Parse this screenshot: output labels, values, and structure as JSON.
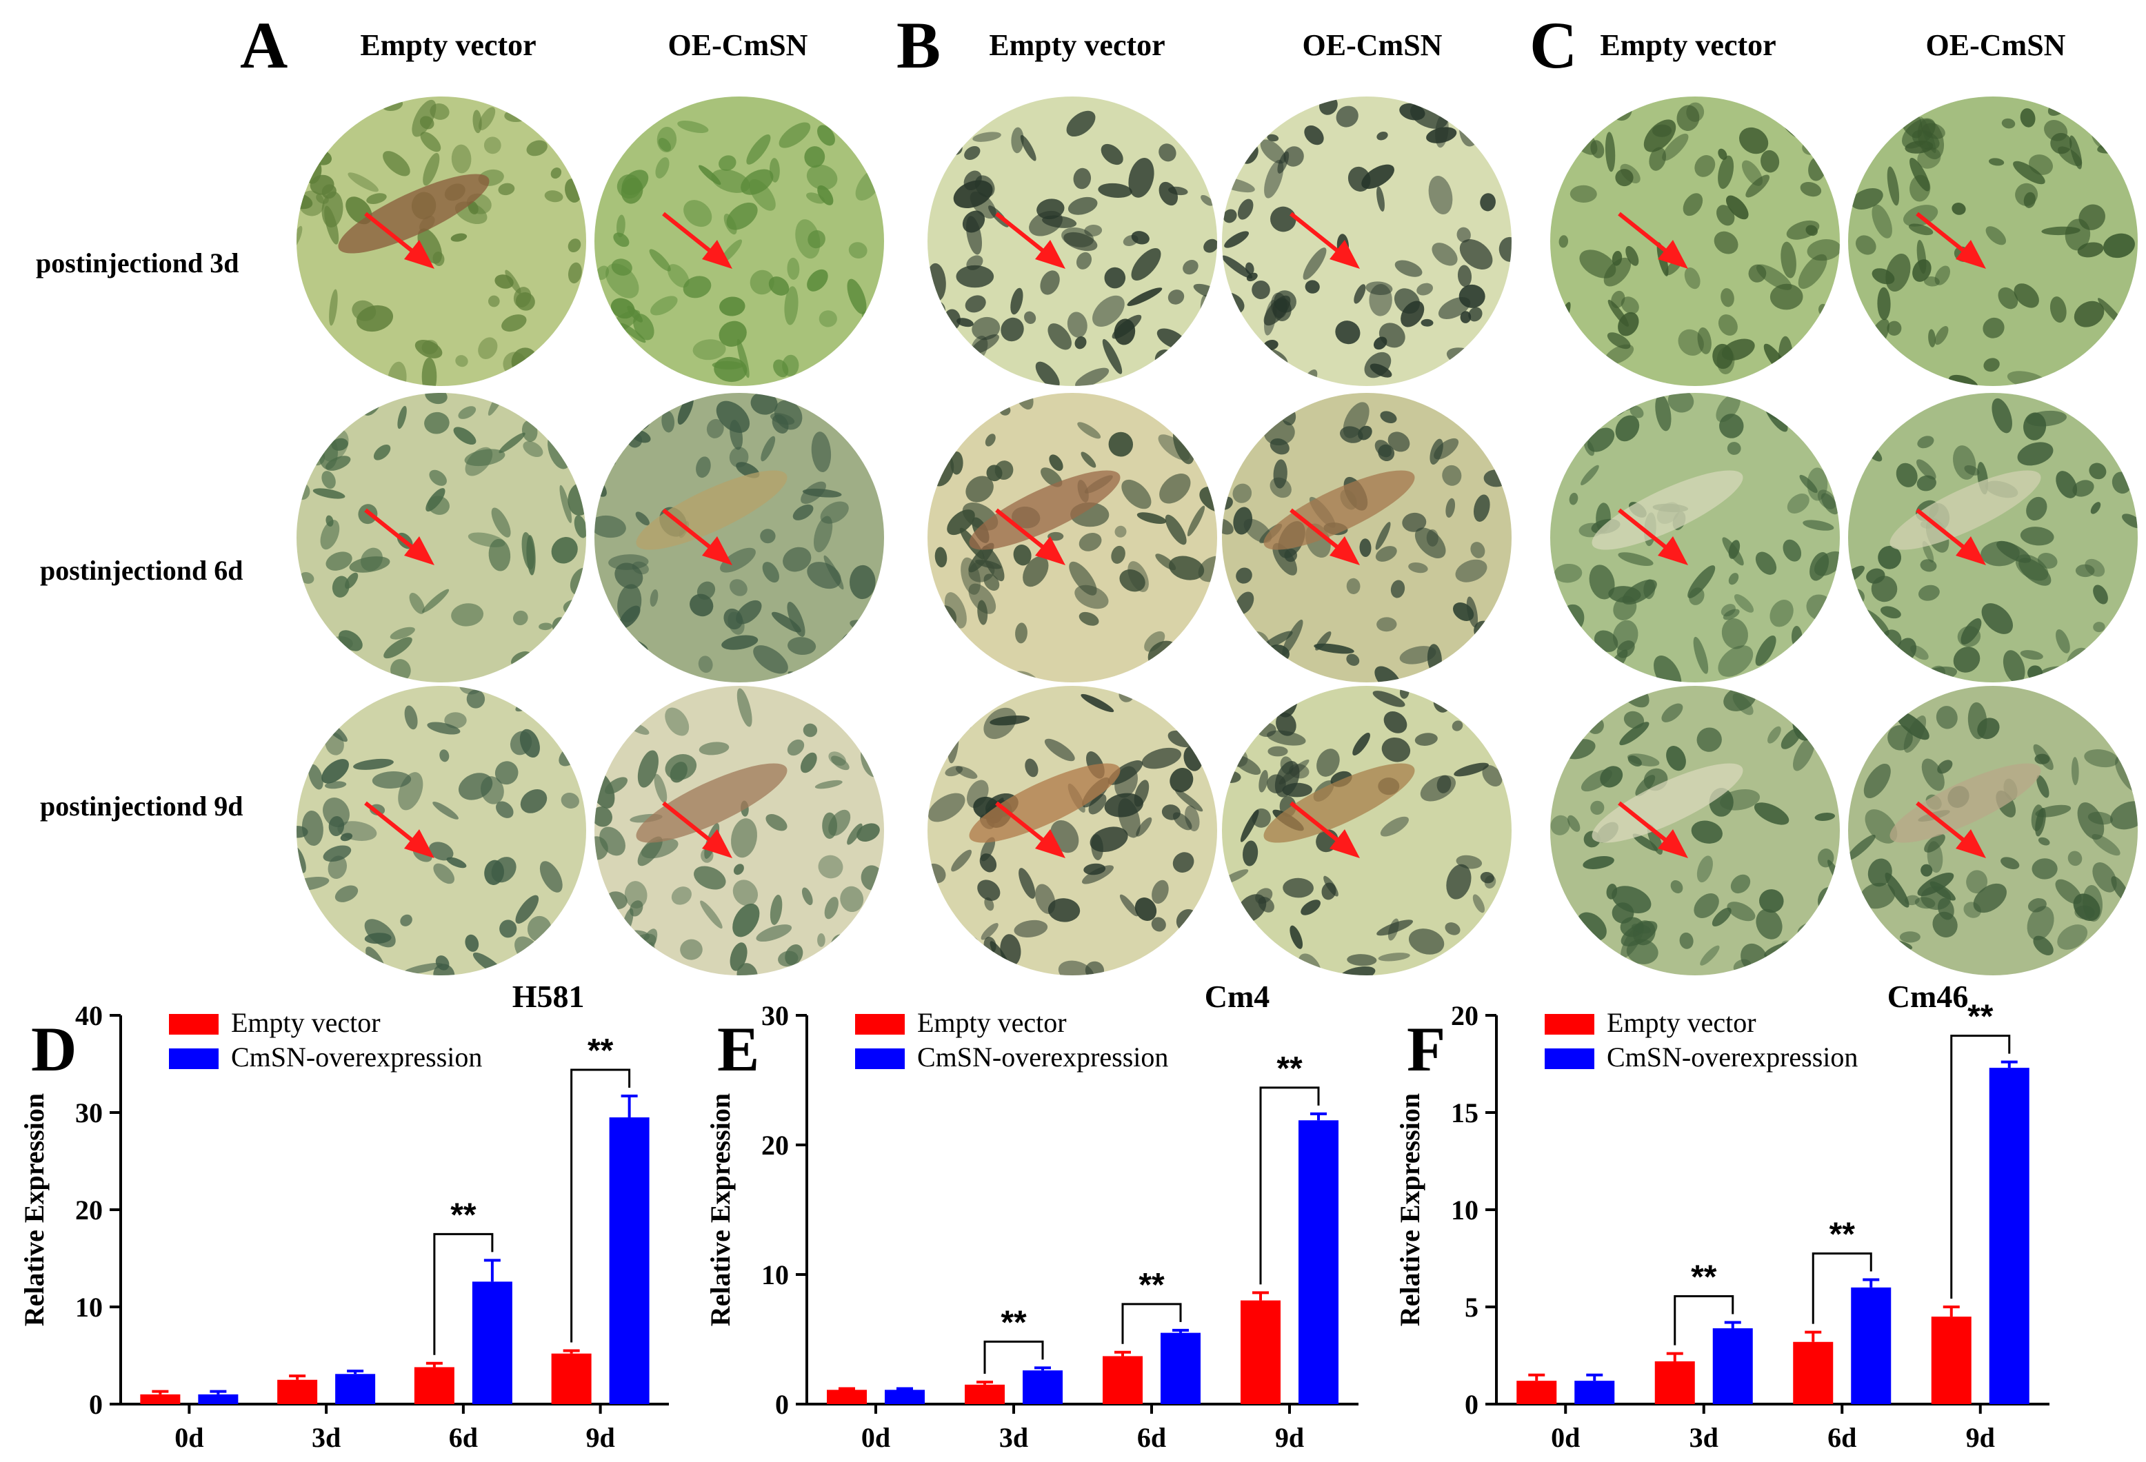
{
  "top_panels": [
    {
      "letter": "A",
      "columns": [
        "Empty vector",
        "OE-CmSN"
      ],
      "photos": [
        {
          "row": 0,
          "col": 0,
          "base": "#b9c987",
          "spots": "#5f7f3a",
          "lesion": "#8a5a3a"
        },
        {
          "row": 0,
          "col": 1,
          "base": "#a8c27a",
          "spots": "#5a8a3a",
          "lesion": null
        },
        {
          "row": 1,
          "col": 0,
          "base": "#c6cda0",
          "spots": "#4a6a48",
          "lesion": null
        },
        {
          "row": 1,
          "col": 1,
          "base": "#9fae86",
          "spots": "#3e5a44",
          "lesion": "#b6a26a"
        },
        {
          "row": 2,
          "col": 0,
          "base": "#cfd4a8",
          "spots": "#3f5c46",
          "lesion": null
        },
        {
          "row": 2,
          "col": 1,
          "base": "#d8d6b6",
          "spots": "#4d6a4c",
          "lesion": "#a07a5a"
        }
      ]
    },
    {
      "letter": "B",
      "columns": [
        "Empty vector",
        "OE-CmSN"
      ],
      "photos": [
        {
          "row": 0,
          "col": 0,
          "base": "#d5dcaf",
          "spots": "#27362a",
          "lesion": null
        },
        {
          "row": 0,
          "col": 1,
          "base": "#d7ddb2",
          "spots": "#26352a",
          "lesion": null
        },
        {
          "row": 1,
          "col": 0,
          "base": "#d9d3a8",
          "spots": "#3a4c36",
          "lesion": "#9a6a48"
        },
        {
          "row": 1,
          "col": 1,
          "base": "#c9c89a",
          "spots": "#2f4233",
          "lesion": "#a4784e"
        },
        {
          "row": 2,
          "col": 0,
          "base": "#d8d6ac",
          "spots": "#28382c",
          "lesion": "#b07a4a"
        },
        {
          "row": 2,
          "col": 1,
          "base": "#cfd6a6",
          "spots": "#2b3b2e",
          "lesion": "#a8804c"
        }
      ]
    },
    {
      "letter": "C",
      "columns": [
        "Empty vector",
        "OE-CmSN"
      ],
      "photos": [
        {
          "row": 0,
          "col": 0,
          "base": "#a9c282",
          "spots": "#3d5a2f",
          "lesion": null
        },
        {
          "row": 0,
          "col": 1,
          "base": "#a4be80",
          "spots": "#3a582e",
          "lesion": null
        },
        {
          "row": 1,
          "col": 0,
          "base": "#a9c08a",
          "spots": "#3f5f3a",
          "lesion": "#d6d8b8"
        },
        {
          "row": 1,
          "col": 1,
          "base": "#a6bd87",
          "spots": "#3d5c38",
          "lesion": "#d0d2b0"
        },
        {
          "row": 2,
          "col": 0,
          "base": "#aebf8e",
          "spots": "#3e5d3a",
          "lesion": "#d8d8ba"
        },
        {
          "row": 2,
          "col": 1,
          "base": "#abbc8c",
          "spots": "#3c5a38",
          "lesion": "#b8a888"
        }
      ]
    }
  ],
  "row_labels": [
    "postinjectiond 3d",
    "postinjectiond 6d",
    "postinjectiond 9d"
  ],
  "colors": {
    "empty": "#ff0000",
    "oe": "#0000ff",
    "arrow": "#ff1a1a",
    "axis": "#000000"
  },
  "chart_data": [
    {
      "type": "bar",
      "letter": "D",
      "title": "H581",
      "ylabel": "Relative Expression",
      "xlabel": "",
      "categories": [
        "0d",
        "3d",
        "6d",
        "9d"
      ],
      "ylim": [
        0,
        40
      ],
      "yticks": [
        0,
        10,
        20,
        30,
        40
      ],
      "legend_position": "top-left",
      "series": [
        {
          "name": "Empty vector",
          "values": [
            1.0,
            2.5,
            3.8,
            5.2
          ],
          "errors": [
            0.3,
            0.4,
            0.4,
            0.3
          ]
        },
        {
          "name": "CmSN-overexpression",
          "values": [
            1.0,
            3.1,
            12.6,
            29.5
          ],
          "errors": [
            0.3,
            0.3,
            2.2,
            2.2
          ]
        }
      ],
      "significance": [
        {
          "category": "6d",
          "label": "**"
        },
        {
          "category": "9d",
          "label": "**"
        }
      ]
    },
    {
      "type": "bar",
      "letter": "E",
      "title": "Cm4",
      "ylabel": "Relative Expression",
      "xlabel": "",
      "categories": [
        "0d",
        "3d",
        "6d",
        "9d"
      ],
      "ylim": [
        0,
        30
      ],
      "yticks": [
        0,
        10,
        20,
        30
      ],
      "legend_position": "top-left",
      "series": [
        {
          "name": "Empty vector",
          "values": [
            1.1,
            1.5,
            3.7,
            8.0
          ],
          "errors": [
            0.1,
            0.2,
            0.3,
            0.6
          ]
        },
        {
          "name": "CmSN-overexpression",
          "values": [
            1.1,
            2.6,
            5.5,
            21.9
          ],
          "errors": [
            0.1,
            0.2,
            0.2,
            0.5
          ]
        }
      ],
      "significance": [
        {
          "category": "3d",
          "label": "**"
        },
        {
          "category": "6d",
          "label": "**"
        },
        {
          "category": "9d",
          "label": "**"
        }
      ]
    },
    {
      "type": "bar",
      "letter": "F",
      "title": "Cm46",
      "ylabel": "Relative Expression",
      "xlabel": "",
      "categories": [
        "0d",
        "3d",
        "6d",
        "9d"
      ],
      "ylim": [
        0,
        20
      ],
      "yticks": [
        0,
        5,
        10,
        15,
        20
      ],
      "legend_position": "top-left",
      "series": [
        {
          "name": "Empty vector",
          "values": [
            1.2,
            2.2,
            3.2,
            4.5
          ],
          "errors": [
            0.3,
            0.4,
            0.5,
            0.5
          ]
        },
        {
          "name": "CmSN-overexpression",
          "values": [
            1.2,
            3.9,
            6.0,
            17.3
          ],
          "errors": [
            0.3,
            0.3,
            0.4,
            0.3
          ]
        }
      ],
      "significance": [
        {
          "category": "3d",
          "label": "**"
        },
        {
          "category": "6d",
          "label": "**"
        },
        {
          "category": "9d",
          "label": "**"
        }
      ]
    }
  ]
}
